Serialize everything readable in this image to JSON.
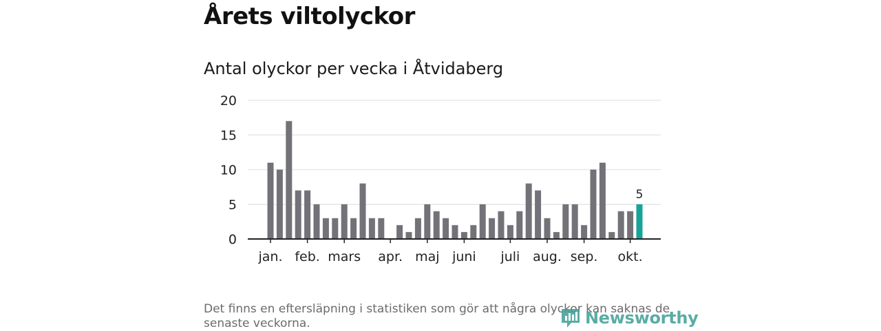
{
  "header": {
    "title": "Årets viltolyckor",
    "subtitle": "Antal olyckor per vecka i Åtvidaberg"
  },
  "footnote": "Det finns en eftersläpning i statistiken som gör att några olyckor kan saknas de senaste veckorna.",
  "logo": {
    "text": "Newsworthy"
  },
  "colors": {
    "bar": "#737278",
    "highlight": "#17a398",
    "grid": "#dddddd",
    "axis": "#222222"
  },
  "chart_data": {
    "type": "bar",
    "title": "Antal olyckor per vecka i Åtvidaberg",
    "xlabel": "",
    "ylabel": "",
    "ylim": [
      0,
      20
    ],
    "yticks": [
      0,
      5,
      10,
      15,
      20
    ],
    "grid": true,
    "weeks": [
      1,
      2,
      3,
      4,
      5,
      6,
      7,
      8,
      9,
      10,
      11,
      12,
      13,
      14,
      15,
      16,
      17,
      18,
      19,
      20,
      21,
      22,
      23,
      24,
      25,
      26,
      27,
      28,
      29,
      30,
      31,
      32,
      33,
      34,
      35,
      36,
      37,
      38,
      39,
      40,
      41
    ],
    "values": [
      11,
      10,
      17,
      7,
      7,
      5,
      3,
      3,
      5,
      3,
      8,
      3,
      3,
      0,
      2,
      1,
      3,
      5,
      4,
      3,
      2,
      1,
      2,
      5,
      3,
      4,
      2,
      4,
      8,
      7,
      3,
      1,
      5,
      5,
      2,
      10,
      11,
      1,
      4,
      4,
      5
    ],
    "highlight_index": 40,
    "highlight_label": "5",
    "month_labels": [
      {
        "label": "jan.",
        "week": 1
      },
      {
        "label": "feb.",
        "week": 5
      },
      {
        "label": "mars",
        "week": 9
      },
      {
        "label": "apr.",
        "week": 14
      },
      {
        "label": "maj",
        "week": 18
      },
      {
        "label": "juni",
        "week": 22
      },
      {
        "label": "juli",
        "week": 27
      },
      {
        "label": "aug.",
        "week": 31
      },
      {
        "label": "sep.",
        "week": 35
      },
      {
        "label": "okt.",
        "week": 40
      }
    ]
  }
}
